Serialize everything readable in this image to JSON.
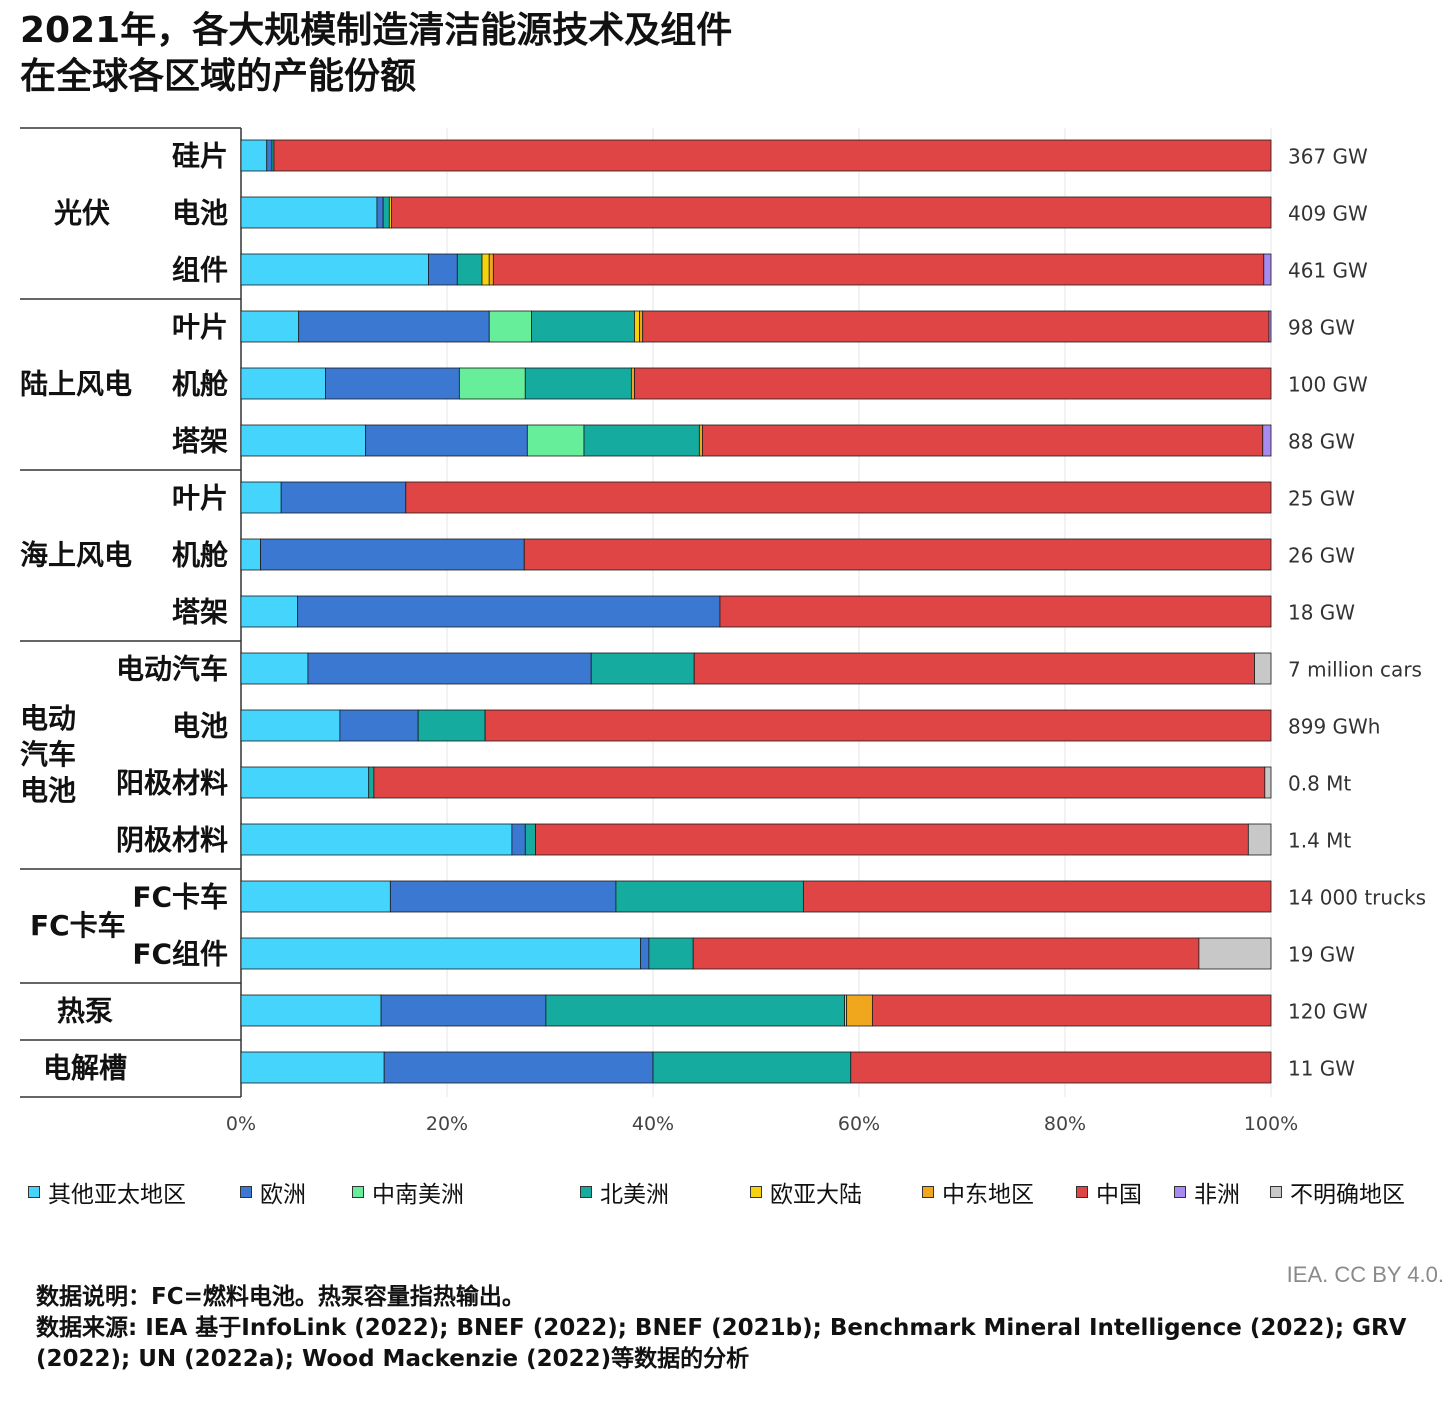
{
  "title": {
    "line1": "2021年，各大规模制造清洁能源技术及组件",
    "line2": "在全球各区域的产能份额"
  },
  "colors": {
    "other_apac": "#45d4fc",
    "europe": "#3b78d1",
    "csam": "#66ee9a",
    "north_america": "#15ab9e",
    "eurasia": "#f5d10e",
    "middle_east": "#f0a71e",
    "china": "#e04545",
    "africa": "#a78bf0",
    "unspecified": "#c8c8c8"
  },
  "chart_data": {
    "type": "bar",
    "orientation": "horizontal",
    "stacked": true,
    "title": "2021年，各大规模制造清洁能源技术及组件在全球各区域的产能份额",
    "xlim": [
      0,
      100
    ],
    "xticks": [
      "0%",
      "20%",
      "40%",
      "60%",
      "80%",
      "100%"
    ],
    "grid": true,
    "legend_position": "bottom",
    "series": [
      {
        "key": "other_apac",
        "name": "其他亚太地区"
      },
      {
        "key": "europe",
        "name": "欧洲"
      },
      {
        "key": "csam",
        "name": "中南美洲"
      },
      {
        "key": "north_america",
        "name": "北美洲"
      },
      {
        "key": "eurasia",
        "name": "欧亚大陆"
      },
      {
        "key": "middle_east",
        "name": "中东地区"
      },
      {
        "key": "china",
        "name": "中国"
      },
      {
        "key": "africa",
        "name": "非洲"
      },
      {
        "key": "unspecified",
        "name": "不明确地区"
      }
    ],
    "groups": [
      {
        "label": "光伏",
        "rows": [
          {
            "label": "硅片",
            "capacity": "367 GW",
            "values": {
              "other_apac": 2.5,
              "europe": 0.5,
              "north_america": 0.2,
              "china": 96.8
            }
          },
          {
            "label": "电池",
            "capacity": "409 GW",
            "values": {
              "other_apac": 13.2,
              "europe": 0.6,
              "north_america": 0.6,
              "eurasia": 0.2,
              "china": 85.4
            }
          },
          {
            "label": "组件",
            "capacity": "461 GW",
            "values": {
              "other_apac": 18.2,
              "europe": 2.8,
              "north_america": 2.4,
              "eurasia": 0.7,
              "middle_east": 0.4,
              "china": 74.8,
              "africa": 0.7
            }
          }
        ]
      },
      {
        "label": "陆上风电",
        "rows": [
          {
            "label": "叶片",
            "capacity": "98 GW",
            "values": {
              "other_apac": 5.6,
              "europe": 18.5,
              "csam": 4.1,
              "north_america": 10.0,
              "eurasia": 0.5,
              "middle_east": 0.3,
              "china": 60.8,
              "africa": 0.2
            }
          },
          {
            "label": "机舱",
            "capacity": "100 GW",
            "values": {
              "other_apac": 8.2,
              "europe": 13.0,
              "csam": 6.4,
              "north_america": 10.3,
              "middle_east": 0.3,
              "china": 61.8
            }
          },
          {
            "label": "塔架",
            "capacity": "88 GW",
            "values": {
              "other_apac": 12.1,
              "europe": 15.7,
              "csam": 5.5,
              "north_america": 11.2,
              "middle_east": 0.3,
              "china": 54.4,
              "africa": 0.8
            }
          }
        ]
      },
      {
        "label": "海上风电",
        "rows": [
          {
            "label": "叶片",
            "capacity": "25 GW",
            "values": {
              "other_apac": 3.9,
              "europe": 12.1,
              "china": 84.0
            }
          },
          {
            "label": "机舱",
            "capacity": "26 GW",
            "values": {
              "other_apac": 1.9,
              "europe": 25.6,
              "china": 72.5
            }
          },
          {
            "label": "塔架",
            "capacity": "18 GW",
            "values": {
              "other_apac": 5.5,
              "europe": 41.0,
              "china": 53.5
            }
          }
        ]
      },
      {
        "label": "电动\n汽车\n电池",
        "rows": [
          {
            "label": "电动汽车",
            "capacity": "7 million cars",
            "values": {
              "other_apac": 6.5,
              "europe": 27.5,
              "north_america": 10.0,
              "china": 54.4,
              "unspecified": 1.6
            }
          },
          {
            "label": "电池",
            "capacity": "899 GWh",
            "values": {
              "other_apac": 9.6,
              "europe": 7.6,
              "north_america": 6.5,
              "china": 76.3
            }
          },
          {
            "label": "阳极材料",
            "capacity": "0.8 Mt",
            "values": {
              "other_apac": 12.4,
              "north_america": 0.5,
              "china": 86.5,
              "unspecified": 0.6
            }
          },
          {
            "label": "阴极材料",
            "capacity": "1.4 Mt",
            "values": {
              "other_apac": 26.3,
              "europe": 1.3,
              "north_america": 1.0,
              "china": 69.2,
              "unspecified": 2.2
            }
          }
        ]
      },
      {
        "label": "FC卡车",
        "rows": [
          {
            "label": "FC卡车",
            "capacity": "14 000 trucks",
            "values": {
              "other_apac": 14.5,
              "europe": 21.9,
              "north_america": 18.2,
              "china": 45.4
            }
          },
          {
            "label": "FC组件",
            "capacity": "19 GW",
            "values": {
              "other_apac": 38.8,
              "europe": 0.8,
              "north_america": 4.3,
              "china": 49.1,
              "unspecified": 7.0
            }
          }
        ]
      },
      {
        "label": "热泵",
        "rows": [
          {
            "label": "",
            "capacity": "120 GW",
            "values": {
              "other_apac": 13.6,
              "europe": 16.0,
              "north_america": 29.0,
              "eurasia": 0.2,
              "middle_east": 2.5,
              "china": 38.7
            }
          }
        ]
      },
      {
        "label": "电解槽",
        "rows": [
          {
            "label": "",
            "capacity": "11 GW",
            "values": {
              "other_apac": 13.9,
              "europe": 26.1,
              "north_america": 19.2,
              "china": 40.8
            }
          }
        ]
      }
    ]
  },
  "credit": "IEA. CC BY 4.0.",
  "notes": {
    "line1": "数据说明：FC=燃料电池。热泵容量指热输出。",
    "line2": "数据来源: IEA 基于InfoLink (2022); BNEF (2022); BNEF (2021b); Benchmark Mineral Intelligence (2022); GRV (2022); UN (2022a); Wood Mackenzie (2022)等数据的分析"
  }
}
